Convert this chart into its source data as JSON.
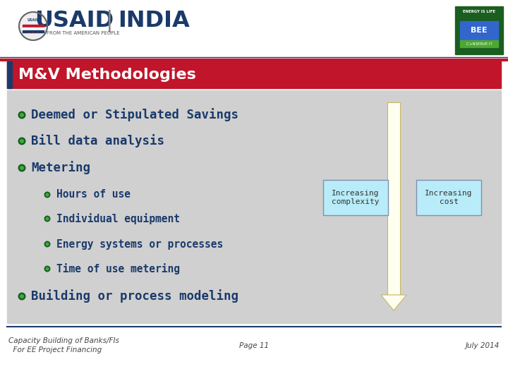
{
  "title": "M&V Methodologies",
  "bg_color": "#ffffff",
  "header_bg": "#ffffff",
  "title_bar_color": "#c0152a",
  "title_bar_accent": "#1a3a6b",
  "title_text_color": "#ffffff",
  "title_fontsize": 16,
  "content_bg": "#d0d0d0",
  "bullet_color_dark": "#1a5e20",
  "bullet_color_light": "#3aae3a",
  "text_color": "#1a3a6b",
  "footer_line_color": "#1a3a6b",
  "footer_text_color": "#444444",
  "footer_left_line1": "Capacity Building of Banks/FIs",
  "footer_left_line2": "  For EE Project Financing",
  "footer_center": "Page 11",
  "footer_right": "July 2014",
  "arrow_fill": "#fffff0",
  "arrow_edge": "#c8b860",
  "box1_text": "Increasing\ncomplexity",
  "box2_text": "Increasing\ncost",
  "box_bg": "#b8ecf8",
  "box_border": "#8090b0",
  "red_line_color": "#c0152a",
  "navy_line_color": "#1a3a6b"
}
